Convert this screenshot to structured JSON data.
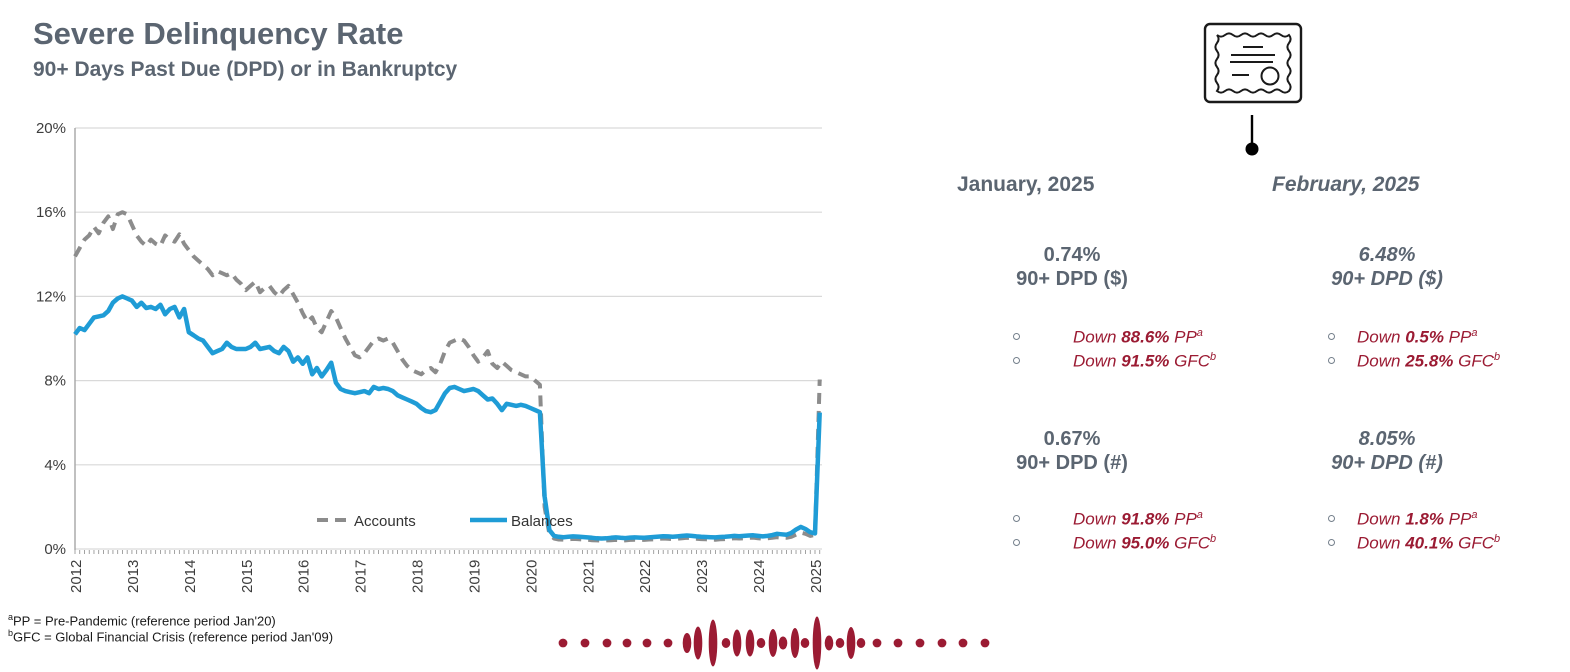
{
  "header": {
    "title": "Severe Delinquency Rate",
    "subtitle": "90+ Days Past Due (DPD) or in Bankruptcy"
  },
  "colors": {
    "slate_text": "#5b6571",
    "accent_red": "#9b1b33",
    "line_blue": "#1f9cd6",
    "line_gray": "#8c8c8c",
    "gridline": "#d9d9d9",
    "axis": "#a6a6a6",
    "tick_label": "#3d3d3d"
  },
  "chart_data": {
    "type": "line",
    "title": "",
    "xlabel": "",
    "ylabel": "",
    "x_unit": "month",
    "x_start": "2012-01",
    "x_end": "2025-02",
    "x_tick_labels": [
      "2012",
      "2013",
      "2014",
      "2015",
      "2016",
      "2017",
      "2018",
      "2019",
      "2020",
      "2021",
      "2022",
      "2023",
      "2024",
      "2025"
    ],
    "y_tick_labels": [
      "0%",
      "4%",
      "8%",
      "12%",
      "16%",
      "20%"
    ],
    "ylim": [
      0,
      20
    ],
    "grid": true,
    "legend_position": "inside-bottom",
    "series": [
      {
        "name": "Accounts",
        "color": "#8c8c8c",
        "dashed": true,
        "values": [
          13.9,
          14.3,
          14.7,
          14.9,
          15.3,
          15.0,
          15.5,
          15.8,
          15.2,
          15.9,
          16.0,
          15.9,
          15.4,
          14.9,
          14.6,
          14.4,
          14.7,
          14.5,
          14.4,
          14.9,
          14.7,
          14.6,
          14.95,
          14.5,
          14.2,
          13.9,
          13.7,
          13.5,
          13.3,
          13.0,
          13.2,
          13.1,
          13.0,
          13.1,
          12.8,
          12.6,
          12.3,
          12.5,
          12.7,
          12.2,
          12.4,
          12.5,
          12.2,
          12.0,
          12.3,
          12.5,
          12.1,
          11.7,
          11.2,
          10.8,
          11.0,
          10.5,
          10.3,
          10.8,
          11.3,
          11.0,
          10.5,
          10.0,
          9.6,
          9.2,
          9.1,
          9.3,
          9.6,
          9.9,
          10.0,
          9.9,
          10.0,
          9.8,
          9.4,
          9.0,
          8.7,
          8.5,
          8.4,
          8.3,
          8.5,
          8.6,
          8.4,
          8.8,
          9.4,
          9.8,
          9.9,
          10.0,
          9.9,
          9.6,
          9.2,
          8.9,
          9.1,
          9.4,
          8.8,
          8.6,
          8.9,
          8.7,
          8.5,
          8.4,
          8.3,
          8.2,
          8.2,
          8.0,
          7.8,
          2.0,
          0.7,
          0.5,
          0.45,
          0.44,
          0.46,
          0.48,
          0.47,
          0.45,
          0.44,
          0.42,
          0.41,
          0.4,
          0.41,
          0.42,
          0.43,
          0.42,
          0.41,
          0.43,
          0.44,
          0.43,
          0.43,
          0.45,
          0.46,
          0.48,
          0.5,
          0.49,
          0.47,
          0.49,
          0.51,
          0.53,
          0.51,
          0.49,
          0.47,
          0.46,
          0.45,
          0.44,
          0.46,
          0.47,
          0.49,
          0.51,
          0.5,
          0.51,
          0.53,
          0.54,
          0.51,
          0.49,
          0.51,
          0.53,
          0.56,
          0.54,
          0.53,
          0.58,
          0.68,
          0.78,
          0.72,
          0.62,
          0.67,
          8.05
        ]
      },
      {
        "name": "Balances",
        "color": "#1f9cd6",
        "dashed": false,
        "values": [
          10.2,
          10.5,
          10.4,
          10.7,
          11.0,
          11.05,
          11.1,
          11.3,
          11.7,
          11.9,
          12.0,
          11.9,
          11.8,
          11.5,
          11.7,
          11.45,
          11.5,
          11.4,
          11.6,
          11.15,
          11.4,
          11.5,
          11.0,
          11.4,
          10.3,
          10.15,
          10.0,
          9.9,
          9.6,
          9.3,
          9.4,
          9.5,
          9.8,
          9.6,
          9.5,
          9.5,
          9.5,
          9.6,
          9.8,
          9.5,
          9.55,
          9.6,
          9.4,
          9.3,
          9.6,
          9.4,
          8.9,
          9.1,
          8.8,
          9.1,
          8.3,
          8.6,
          8.2,
          8.5,
          8.85,
          7.9,
          7.6,
          7.5,
          7.45,
          7.4,
          7.45,
          7.5,
          7.4,
          7.7,
          7.6,
          7.65,
          7.6,
          7.5,
          7.3,
          7.2,
          7.1,
          7.0,
          6.9,
          6.7,
          6.55,
          6.5,
          6.6,
          7.0,
          7.4,
          7.65,
          7.7,
          7.6,
          7.5,
          7.55,
          7.6,
          7.5,
          7.3,
          7.1,
          7.15,
          6.9,
          6.6,
          6.9,
          6.85,
          6.8,
          6.85,
          6.8,
          6.7,
          6.6,
          6.5,
          2.5,
          0.9,
          0.62,
          0.58,
          0.56,
          0.58,
          0.6,
          0.59,
          0.57,
          0.55,
          0.53,
          0.51,
          0.5,
          0.51,
          0.53,
          0.55,
          0.53,
          0.52,
          0.54,
          0.55,
          0.54,
          0.53,
          0.55,
          0.57,
          0.59,
          0.61,
          0.6,
          0.58,
          0.6,
          0.62,
          0.64,
          0.62,
          0.6,
          0.58,
          0.57,
          0.56,
          0.55,
          0.57,
          0.58,
          0.6,
          0.62,
          0.61,
          0.62,
          0.64,
          0.65,
          0.62,
          0.6,
          0.62,
          0.66,
          0.72,
          0.7,
          0.68,
          0.76,
          0.92,
          1.05,
          0.95,
          0.8,
          0.74,
          6.48
        ]
      }
    ]
  },
  "callouts": {
    "columns": [
      {
        "id": "january",
        "header": "January, 2025",
        "italic": false,
        "blocks": [
          {
            "value": "0.74%",
            "label": "90+ DPD ($)",
            "bullets": [
              {
                "pre": "Down ",
                "strong": "88.6%",
                "post": " PP",
                "sup": "a"
              },
              {
                "pre": "Down ",
                "strong": "91.5%",
                "post": " GFC",
                "sup": "b"
              }
            ]
          },
          {
            "value": "0.67%",
            "label": "90+ DPD (#)",
            "bullets": [
              {
                "pre": "Down ",
                "strong": "91.8%",
                "post": " PP",
                "sup": "a"
              },
              {
                "pre": "Down ",
                "strong": "95.0%",
                "post": " GFC",
                "sup": "b"
              }
            ]
          }
        ]
      },
      {
        "id": "february",
        "header": "February, 2025",
        "italic": true,
        "blocks": [
          {
            "value": "6.48%",
            "label": "90+ DPD ($)",
            "bullets": [
              {
                "pre": "Down ",
                "strong": "0.5%",
                "post": " PP",
                "sup": "a"
              },
              {
                "pre": "Down ",
                "strong": "25.8%",
                "post": " GFC",
                "sup": "b"
              }
            ]
          },
          {
            "value": "8.05%",
            "label": "90+ DPD (#)",
            "bullets": [
              {
                "pre": "Down ",
                "strong": "1.8%",
                "post": " PP",
                "sup": "a"
              },
              {
                "pre": "Down ",
                "strong": "40.1%",
                "post": " GFC",
                "sup": "b"
              }
            ]
          }
        ]
      }
    ]
  },
  "footnotes": [
    {
      "sup": "a",
      "text": "PP = Pre-Pandemic (reference period Jan'20)"
    },
    {
      "sup": "b",
      "text": "GFC = Global Financial Crisis (reference period Jan'09)"
    }
  ],
  "decoration": {
    "name": "dot-waveform",
    "color": "#9b1b33",
    "left_dots": 6,
    "right_dots": 6,
    "spindle_heights": [
      20,
      33,
      47,
      10,
      27,
      27,
      10,
      28,
      13,
      30,
      10,
      53,
      15,
      10,
      32,
      10
    ]
  },
  "icons": {
    "top_right": "certificate-icon"
  }
}
